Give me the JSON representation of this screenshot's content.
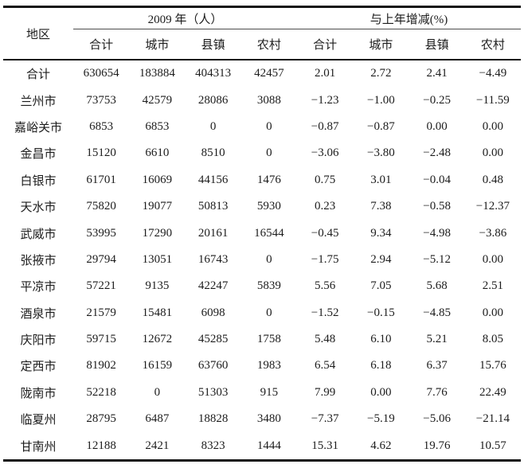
{
  "table": {
    "region_header": "地区",
    "group_headers": [
      "2009 年（人）",
      "与上年增减(%)"
    ],
    "sub_headers": [
      "合计",
      "城市",
      "县镇",
      "农村",
      "合计",
      "城市",
      "县镇",
      "农村"
    ],
    "rows": [
      {
        "region": "合计",
        "values": [
          "630654",
          "183884",
          "404313",
          "42457",
          "2.01",
          "2.72",
          "2.41",
          "−4.49"
        ]
      },
      {
        "region": "兰州市",
        "values": [
          "73753",
          "42579",
          "28086",
          "3088",
          "−1.23",
          "−1.00",
          "−0.25",
          "−11.59"
        ]
      },
      {
        "region": "嘉峪关市",
        "values": [
          "6853",
          "6853",
          "0",
          "0",
          "−0.87",
          "−0.87",
          "0.00",
          "0.00"
        ]
      },
      {
        "region": "金昌市",
        "values": [
          "15120",
          "6610",
          "8510",
          "0",
          "−3.06",
          "−3.80",
          "−2.48",
          "0.00"
        ]
      },
      {
        "region": "白银市",
        "values": [
          "61701",
          "16069",
          "44156",
          "1476",
          "0.75",
          "3.01",
          "−0.04",
          "0.48"
        ]
      },
      {
        "region": "天水市",
        "values": [
          "75820",
          "19077",
          "50813",
          "5930",
          "0.23",
          "7.38",
          "−0.58",
          "−12.37"
        ]
      },
      {
        "region": "武威市",
        "values": [
          "53995",
          "17290",
          "20161",
          "16544",
          "−0.45",
          "9.34",
          "−4.98",
          "−3.86"
        ]
      },
      {
        "region": "张掖市",
        "values": [
          "29794",
          "13051",
          "16743",
          "0",
          "−1.75",
          "2.94",
          "−5.12",
          "0.00"
        ]
      },
      {
        "region": "平凉市",
        "values": [
          "57221",
          "9135",
          "42247",
          "5839",
          "5.56",
          "7.05",
          "5.68",
          "2.51"
        ]
      },
      {
        "region": "酒泉市",
        "values": [
          "21579",
          "15481",
          "6098",
          "0",
          "−1.52",
          "−0.15",
          "−4.85",
          "0.00"
        ]
      },
      {
        "region": "庆阳市",
        "values": [
          "59715",
          "12672",
          "45285",
          "1758",
          "5.48",
          "6.10",
          "5.21",
          "8.05"
        ]
      },
      {
        "region": "定西市",
        "values": [
          "81902",
          "16159",
          "63760",
          "1983",
          "6.54",
          "6.18",
          "6.37",
          "15.76"
        ]
      },
      {
        "region": "陇南市",
        "values": [
          "52218",
          "0",
          "51303",
          "915",
          "7.99",
          "0.00",
          "7.76",
          "22.49"
        ]
      },
      {
        "region": "临夏州",
        "values": [
          "28795",
          "6487",
          "18828",
          "3480",
          "−7.37",
          "−5.19",
          "−5.06",
          "−21.14"
        ]
      },
      {
        "region": "甘南州",
        "values": [
          "12188",
          "2421",
          "8323",
          "1444",
          "15.31",
          "4.62",
          "19.76",
          "10.57"
        ]
      }
    ]
  }
}
